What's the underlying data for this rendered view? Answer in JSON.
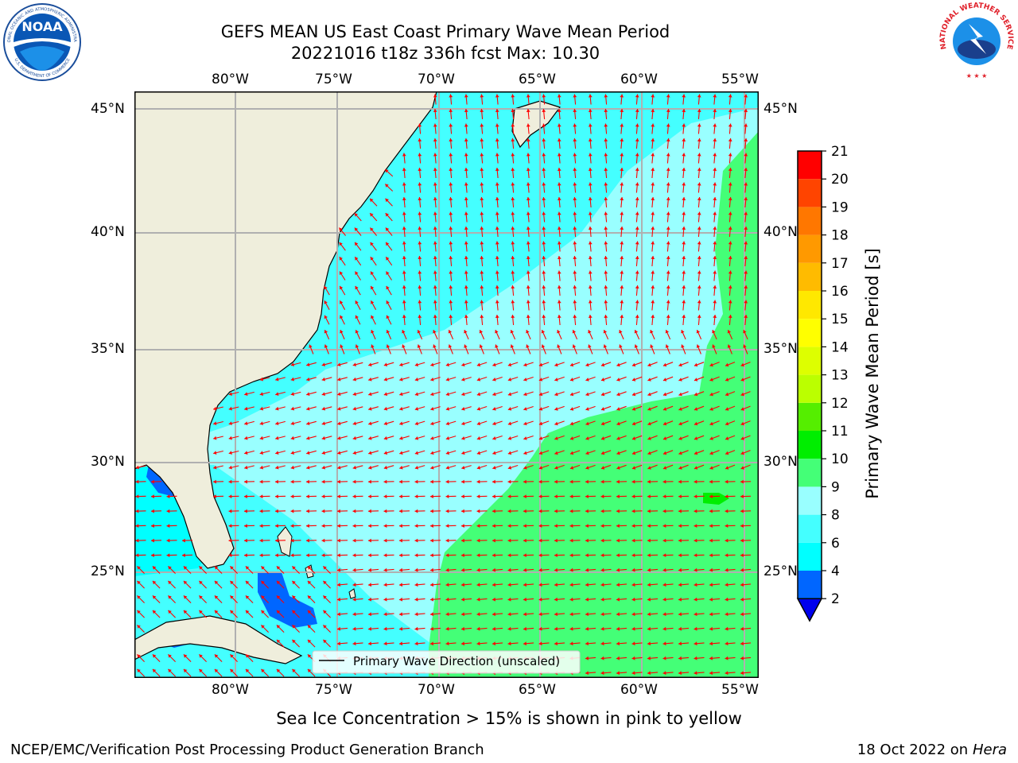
{
  "header": {
    "title_line1": "GEFS MEAN US East Coast Primary Wave Mean Period",
    "title_line2": "20221016 t18z 336h fcst   Max: 10.30"
  },
  "logos": {
    "left": {
      "text": "NOAA",
      "ring_text_top": "NATIONAL OCEANIC AND ATMOSPHERIC ADMINISTRATION",
      "ring_text_bottom": "U.S. DEPARTMENT OF COMMERCE"
    },
    "right": {
      "ring_text": "NATIONAL WEATHER SERVICE"
    }
  },
  "map": {
    "lon_ticks": [
      "80°W",
      "75°W",
      "70°W",
      "65°W",
      "60°W",
      "55°W"
    ],
    "lat_ticks": [
      "45°N",
      "40°N",
      "35°N",
      "30°N",
      "25°N"
    ],
    "legend_label": "Primary Wave Direction (unscaled)",
    "land_color": "#efeedc",
    "arrow_color": "#ff0000"
  },
  "colorbar": {
    "label": "Primary Wave Mean Period [s]",
    "ticks": [
      "2",
      "4",
      "6",
      "8",
      "9",
      "10",
      "11",
      "12",
      "13",
      "14",
      "15",
      "16",
      "17",
      "18",
      "19",
      "20",
      "21"
    ],
    "colors": [
      "#0066ff",
      "#00ffff",
      "#44ffff",
      "#99ffff",
      "#44ff77",
      "#00ee00",
      "#55ee00",
      "#bbff00",
      "#ddff00",
      "#ffff00",
      "#ffe800",
      "#ffbb00",
      "#ff9900",
      "#ff7700",
      "#ff4400",
      "#ff0000"
    ],
    "extend_color": "#0000ee"
  },
  "footer": {
    "note": "Sea Ice Concentration > 15% is shown in pink to yellow",
    "left": "NCEP/EMC/Verification Post Processing Product Generation Branch",
    "right_prefix": "18 Oct 2022 on ",
    "right_host": "Hera"
  }
}
